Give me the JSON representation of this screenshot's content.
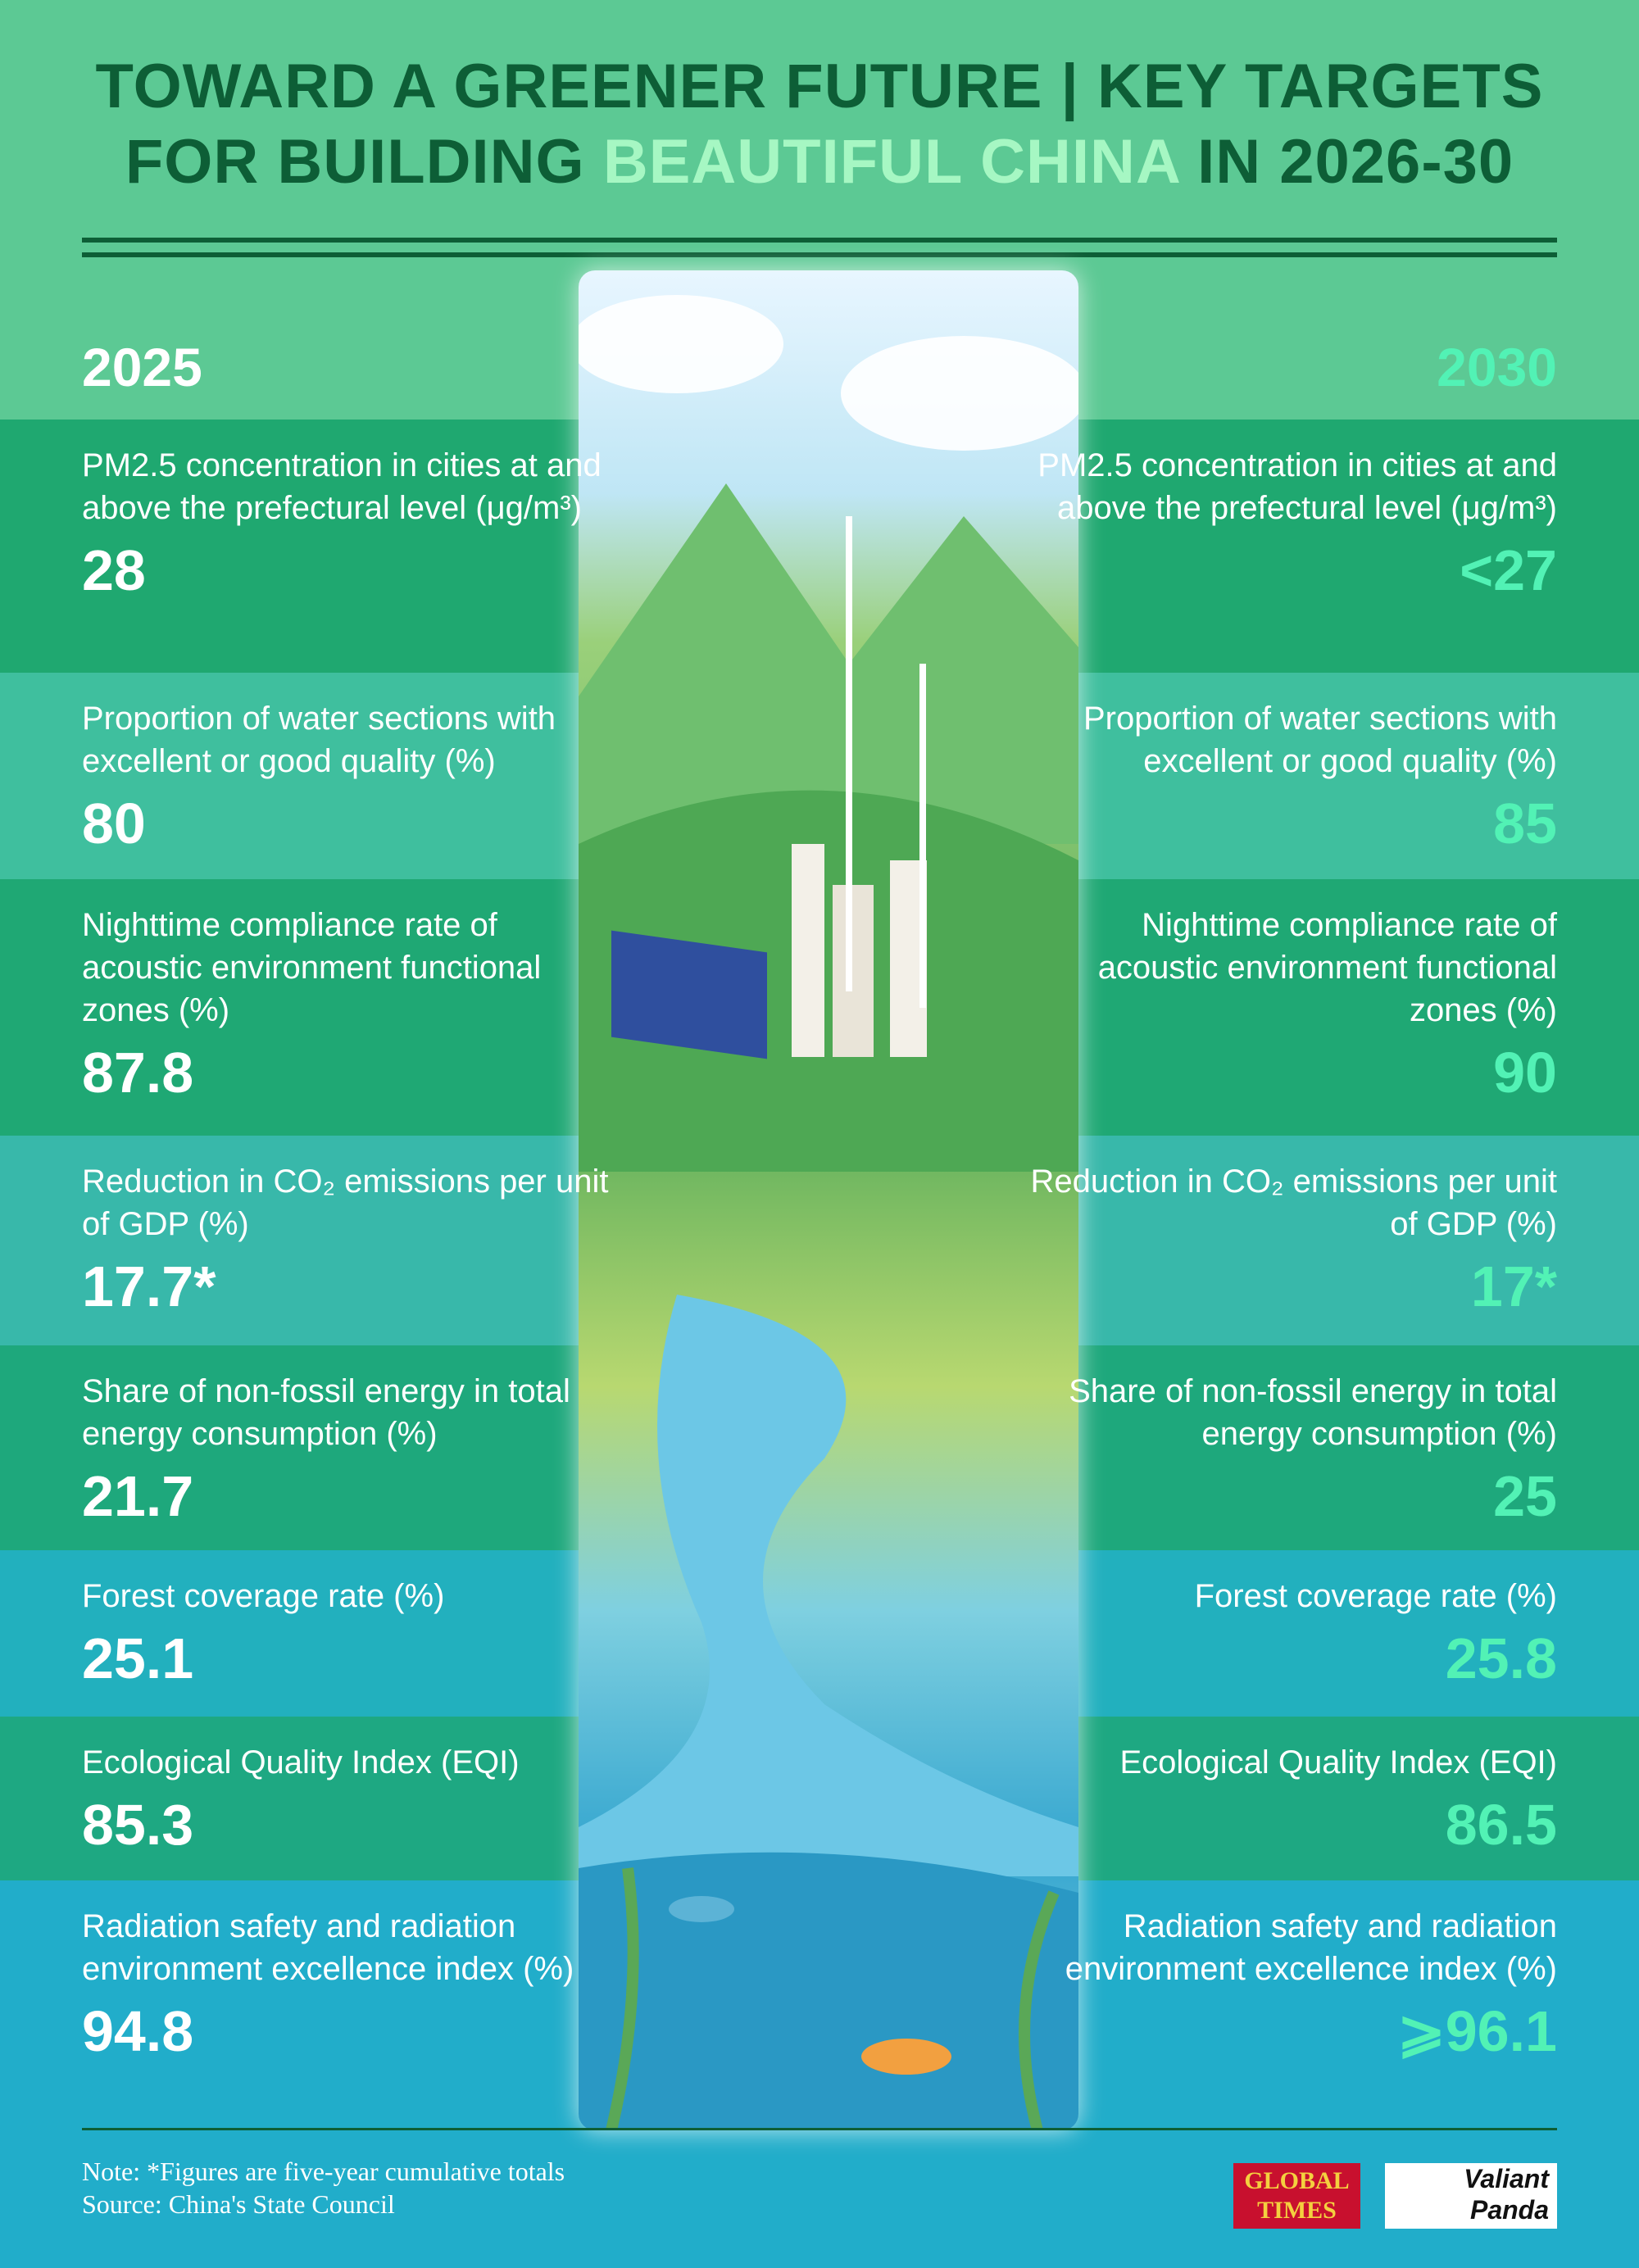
{
  "header": {
    "title_line1": "TOWARD A GREENER FUTURE | KEY TARGETS",
    "title_line2_a": "FOR BUILDING",
    "title_line2_highlight": "BEAUTIFUL CHINA",
    "title_line2_b": "IN 2026-30",
    "year_left": "2025",
    "year_right": "2030"
  },
  "rows": [
    {
      "label": "PM2.5 concentration in cities at and above the prefectural level (μg/m³)",
      "value_2025": "28",
      "value_2030": "<27"
    },
    {
      "label": "Proportion of water sections with excellent or good quality (%)",
      "value_2025": "80",
      "value_2030": "85"
    },
    {
      "label": "Nighttime compliance rate of acoustic environment functional zones (%)",
      "value_2025": "87.8",
      "value_2030": "90"
    },
    {
      "label": "Reduction in CO₂ emissions per unit of GDP (%)",
      "value_2025": "17.7*",
      "value_2030": "17*"
    },
    {
      "label": "Share of non-fossil energy in total energy consumption (%)",
      "value_2025": "21.7",
      "value_2030": "25"
    },
    {
      "label": "Forest coverage rate (%)",
      "value_2025": "25.1",
      "value_2030": "25.8"
    },
    {
      "label": "Ecological Quality Index (EQI)",
      "value_2025": "85.3",
      "value_2030": "86.5"
    },
    {
      "label": "Radiation safety and radiation environment excellence index (%)",
      "value_2025": "94.8",
      "value_2030": "⩾96.1"
    }
  ],
  "footer": {
    "note": "Note: *Figures are five-year cumulative totals",
    "source": "Source: China's State Council",
    "logo1": "GLOBAL TIMES",
    "logo2": "Valiant Panda"
  }
}
